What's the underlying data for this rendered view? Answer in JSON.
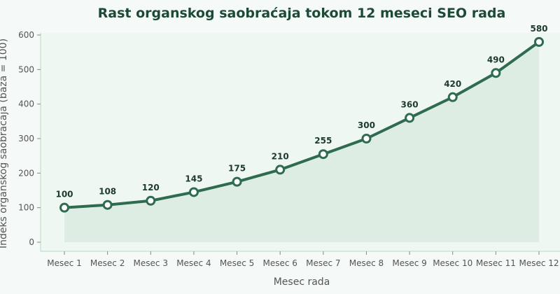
{
  "colors": {
    "line": "#2e6b4f",
    "area": "#d9ebe2",
    "plot_bg": "#eff7f2",
    "page_bg": "#f5f9f7",
    "point_fill": "#ffffff",
    "axis": "#b9d8c6"
  },
  "chart_data": {
    "type": "area",
    "title": "Rast organskog saobraćaja tokom 12 meseci SEO rada",
    "xlabel": "Mesec rada",
    "ylabel": "Indeks organskog saobraćaja (baza = 100)",
    "categories": [
      "Mesec 1",
      "Mesec 2",
      "Mesec 3",
      "Mesec 4",
      "Mesec 5",
      "Mesec 6",
      "Mesec 7",
      "Mesec 8",
      "Mesec 9",
      "Mesec 10",
      "Mesec 11",
      "Mesec 12"
    ],
    "values": [
      100,
      108,
      120,
      145,
      175,
      210,
      255,
      300,
      360,
      420,
      490,
      580
    ],
    "ylim": [
      0,
      600
    ],
    "yticks": [
      0,
      100,
      200,
      300,
      400,
      500,
      600
    ],
    "grid": false,
    "legend": "none",
    "data_labels": true
  }
}
